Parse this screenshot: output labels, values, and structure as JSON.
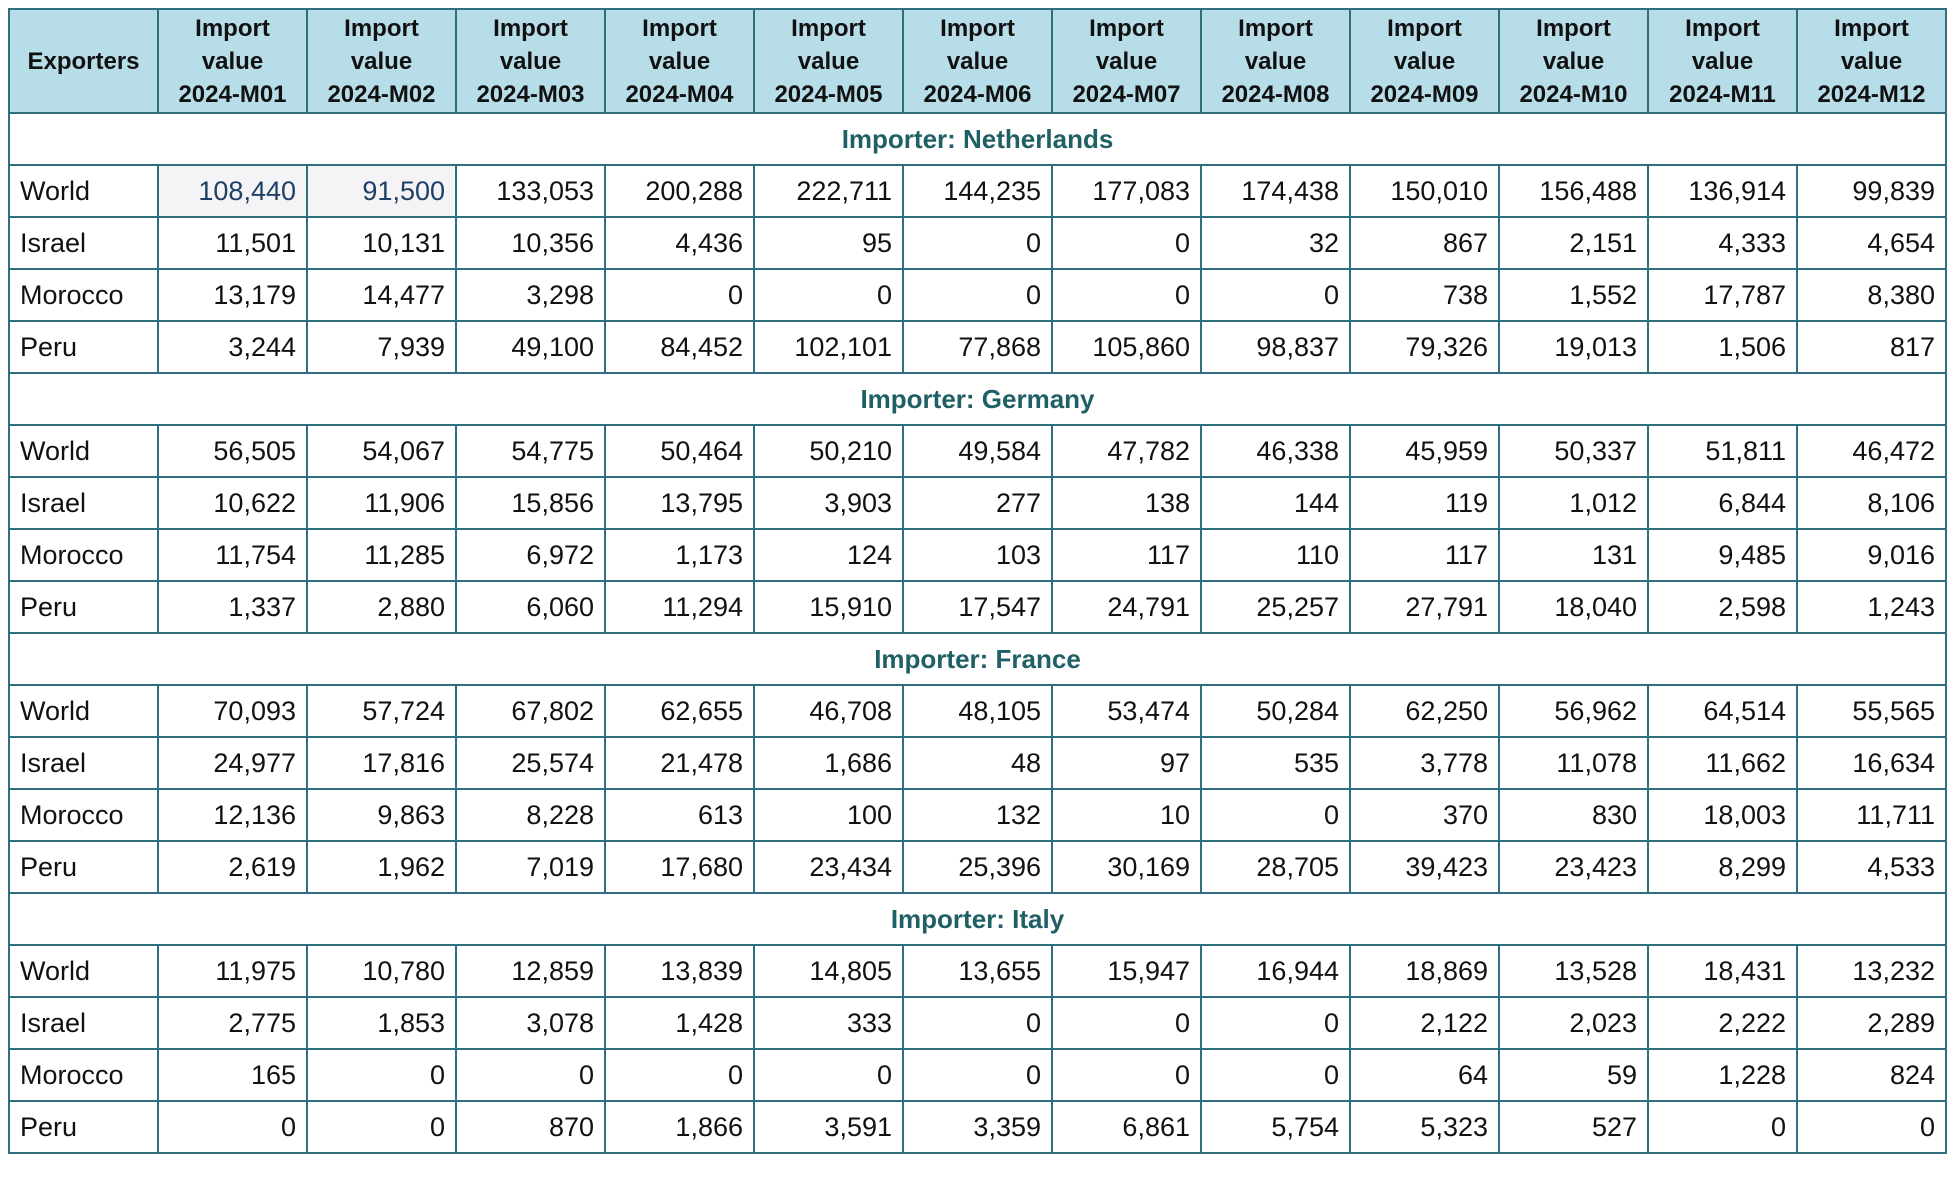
{
  "header": {
    "exporters_label": "Exporters",
    "month_line1": "Import",
    "month_line2": "value",
    "months": [
      "2024-M01",
      "2024-M02",
      "2024-M03",
      "2024-M04",
      "2024-M05",
      "2024-M06",
      "2024-M07",
      "2024-M08",
      "2024-M09",
      "2024-M10",
      "2024-M11",
      "2024-M12"
    ]
  },
  "groups": [
    {
      "label": "Importer: Netherlands",
      "rows": [
        {
          "exporter": "World",
          "values": [
            "108,440",
            "91,500",
            "133,053",
            "200,288",
            "222,711",
            "144,235",
            "177,083",
            "174,438",
            "150,010",
            "156,488",
            "136,914",
            "99,839"
          ]
        },
        {
          "exporter": "Israel",
          "values": [
            "11,501",
            "10,131",
            "10,356",
            "4,436",
            "95",
            "0",
            "0",
            "32",
            "867",
            "2,151",
            "4,333",
            "4,654"
          ]
        },
        {
          "exporter": "Morocco",
          "values": [
            "13,179",
            "14,477",
            "3,298",
            "0",
            "0",
            "0",
            "0",
            "0",
            "738",
            "1,552",
            "17,787",
            "8,380"
          ]
        },
        {
          "exporter": "Peru",
          "values": [
            "3,244",
            "7,939",
            "49,100",
            "84,452",
            "102,101",
            "77,868",
            "105,860",
            "98,837",
            "79,326",
            "19,013",
            "1,506",
            "817"
          ]
        }
      ]
    },
    {
      "label": "Importer: Germany",
      "rows": [
        {
          "exporter": "World",
          "values": [
            "56,505",
            "54,067",
            "54,775",
            "50,464",
            "50,210",
            "49,584",
            "47,782",
            "46,338",
            "45,959",
            "50,337",
            "51,811",
            "46,472"
          ]
        },
        {
          "exporter": "Israel",
          "values": [
            "10,622",
            "11,906",
            "15,856",
            "13,795",
            "3,903",
            "277",
            "138",
            "144",
            "119",
            "1,012",
            "6,844",
            "8,106"
          ]
        },
        {
          "exporter": "Morocco",
          "values": [
            "11,754",
            "11,285",
            "6,972",
            "1,173",
            "124",
            "103",
            "117",
            "110",
            "117",
            "131",
            "9,485",
            "9,016"
          ]
        },
        {
          "exporter": "Peru",
          "values": [
            "1,337",
            "2,880",
            "6,060",
            "11,294",
            "15,910",
            "17,547",
            "24,791",
            "25,257",
            "27,791",
            "18,040",
            "2,598",
            "1,243"
          ]
        }
      ]
    },
    {
      "label": "Importer: France",
      "rows": [
        {
          "exporter": "World",
          "values": [
            "70,093",
            "57,724",
            "67,802",
            "62,655",
            "46,708",
            "48,105",
            "53,474",
            "50,284",
            "62,250",
            "56,962",
            "64,514",
            "55,565"
          ]
        },
        {
          "exporter": "Israel",
          "values": [
            "24,977",
            "17,816",
            "25,574",
            "21,478",
            "1,686",
            "48",
            "97",
            "535",
            "3,778",
            "11,078",
            "11,662",
            "16,634"
          ]
        },
        {
          "exporter": "Morocco",
          "values": [
            "12,136",
            "9,863",
            "8,228",
            "613",
            "100",
            "132",
            "10",
            "0",
            "370",
            "830",
            "18,003",
            "11,711"
          ]
        },
        {
          "exporter": "Peru",
          "values": [
            "2,619",
            "1,962",
            "7,019",
            "17,680",
            "23,434",
            "25,396",
            "30,169",
            "28,705",
            "39,423",
            "23,423",
            "8,299",
            "4,533"
          ]
        }
      ]
    },
    {
      "label": "Importer: Italy",
      "rows": [
        {
          "exporter": "World",
          "values": [
            "11,975",
            "10,780",
            "12,859",
            "13,839",
            "14,805",
            "13,655",
            "15,947",
            "16,944",
            "18,869",
            "13,528",
            "18,431",
            "13,232"
          ]
        },
        {
          "exporter": "Israel",
          "values": [
            "2,775",
            "1,853",
            "3,078",
            "1,428",
            "333",
            "0",
            "0",
            "0",
            "2,122",
            "2,023",
            "2,222",
            "2,289"
          ]
        },
        {
          "exporter": "Morocco",
          "values": [
            "165",
            "0",
            "0",
            "0",
            "0",
            "0",
            "0",
            "0",
            "64",
            "59",
            "1,228",
            "824"
          ]
        },
        {
          "exporter": "Peru",
          "values": [
            "0",
            "0",
            "870",
            "1,866",
            "3,591",
            "3,359",
            "6,861",
            "5,754",
            "5,323",
            "527",
            "0",
            "0"
          ]
        }
      ]
    }
  ],
  "selection": {
    "cells": [
      {
        "group": 0,
        "row": 0,
        "col": 0
      },
      {
        "group": 0,
        "row": 0,
        "col": 1
      }
    ]
  },
  "colors": {
    "header_bg": "#b7dde8",
    "border": "#2f6f7f",
    "group_label": "#1f5f66",
    "selected_bg": "#f4f4f6",
    "selected_text": "#1f3f66"
  }
}
